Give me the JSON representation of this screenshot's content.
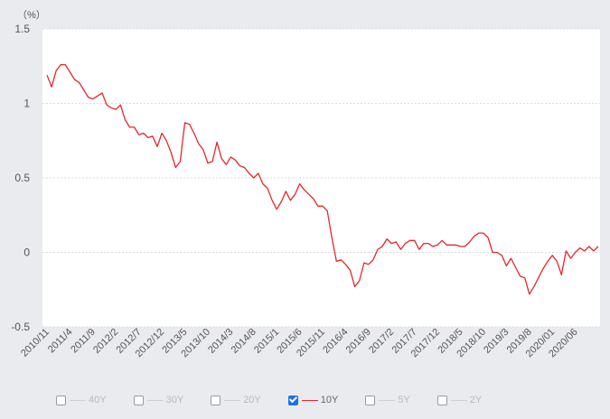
{
  "chart_data": {
    "type": "line",
    "unit_label": "（%）",
    "y_ticks": [
      "1.5",
      "1",
      "0.5",
      "0",
      "-0.5"
    ],
    "ylim": [
      -0.5,
      1.5
    ],
    "grid": true,
    "x_tick_labels": [
      "2010/11",
      "2011/4",
      "2011/9",
      "2012/2",
      "2012/7",
      "2012/12",
      "2013/5",
      "2013/10",
      "2014/3",
      "2014/8",
      "2015/1",
      "2015/6",
      "2015/11",
      "2016/4",
      "2016/9",
      "2017/2",
      "2017/7",
      "2017/12",
      "2018/5",
      "2018/10",
      "2019/3",
      "2019/8",
      "2020/01",
      "2020/06"
    ],
    "x_tick_index": [
      0,
      5,
      10,
      15,
      20,
      25,
      30,
      35,
      40,
      45,
      50,
      55,
      60,
      65,
      70,
      75,
      80,
      85,
      90,
      95,
      100,
      105,
      110,
      115
    ],
    "series": [
      {
        "name": "10Y",
        "color": "#e8262a",
        "values": [
          1.19,
          1.11,
          1.22,
          1.26,
          1.26,
          1.21,
          1.16,
          1.14,
          1.09,
          1.04,
          1.03,
          1.05,
          1.07,
          0.99,
          0.97,
          0.96,
          0.99,
          0.89,
          0.84,
          0.84,
          0.79,
          0.8,
          0.77,
          0.78,
          0.71,
          0.8,
          0.75,
          0.67,
          0.57,
          0.61,
          0.87,
          0.86,
          0.8,
          0.73,
          0.69,
          0.6,
          0.61,
          0.74,
          0.63,
          0.59,
          0.64,
          0.62,
          0.58,
          0.57,
          0.53,
          0.5,
          0.53,
          0.46,
          0.43,
          0.35,
          0.29,
          0.34,
          0.41,
          0.35,
          0.39,
          0.46,
          0.42,
          0.39,
          0.36,
          0.31,
          0.31,
          0.28,
          0.1,
          -0.06,
          -0.05,
          -0.08,
          -0.12,
          -0.23,
          -0.19,
          -0.07,
          -0.08,
          -0.05,
          0.02,
          0.04,
          0.09,
          0.06,
          0.07,
          0.02,
          0.06,
          0.08,
          0.08,
          0.02,
          0.06,
          0.06,
          0.04,
          0.05,
          0.08,
          0.05,
          0.05,
          0.05,
          0.04,
          0.04,
          0.07,
          0.11,
          0.13,
          0.13,
          0.1,
          0.0,
          0.0,
          -0.02,
          -0.09,
          -0.04,
          -0.1,
          -0.16,
          -0.17,
          -0.28,
          -0.23,
          -0.17,
          -0.11,
          -0.06,
          -0.02,
          -0.06,
          -0.15,
          0.01,
          -0.04,
          0.0,
          0.03,
          0.01,
          0.04,
          0.01,
          0.04
        ]
      }
    ]
  },
  "legend": [
    {
      "label": "40Y",
      "checked": false
    },
    {
      "label": "30Y",
      "checked": false
    },
    {
      "label": "20Y",
      "checked": false
    },
    {
      "label": "10Y",
      "checked": true,
      "color": "#e8262a"
    },
    {
      "label": "5Y",
      "checked": false
    },
    {
      "label": "2Y",
      "checked": false
    }
  ]
}
